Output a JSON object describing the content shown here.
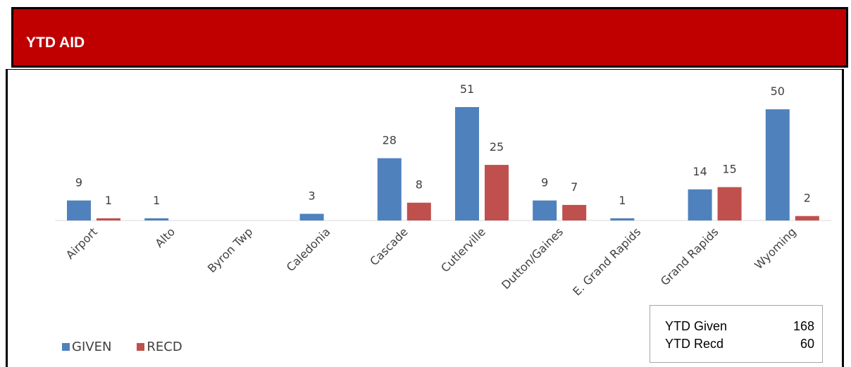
{
  "header": {
    "title": "YTD AID"
  },
  "colors": {
    "header_bg": "#c00000",
    "given": "#4f81bd",
    "recd": "#c0504d"
  },
  "chart_data": {
    "type": "bar",
    "categories": [
      "Airport",
      "Alto",
      "Byron Twp",
      "Caledonia",
      "Cascade",
      "Cutlerville",
      "Dutton/Gaines",
      "E. Grand Rapids",
      "Grand Rapids",
      "Wyoming"
    ],
    "series": [
      {
        "name": "GIVEN",
        "values": [
          9,
          1,
          null,
          3,
          28,
          51,
          9,
          1,
          14,
          50
        ]
      },
      {
        "name": "RECD",
        "values": [
          1,
          null,
          null,
          null,
          8,
          25,
          7,
          null,
          15,
          2
        ]
      }
    ],
    "ylim": [
      0,
      51
    ],
    "grid": false,
    "legend": "bottom-left"
  },
  "legend": {
    "given_label": "GIVEN",
    "recd_label": "RECD"
  },
  "totals": {
    "given_label": "YTD Given",
    "given_value": "168",
    "recd_label": "YTD Recd",
    "recd_value": "60"
  }
}
